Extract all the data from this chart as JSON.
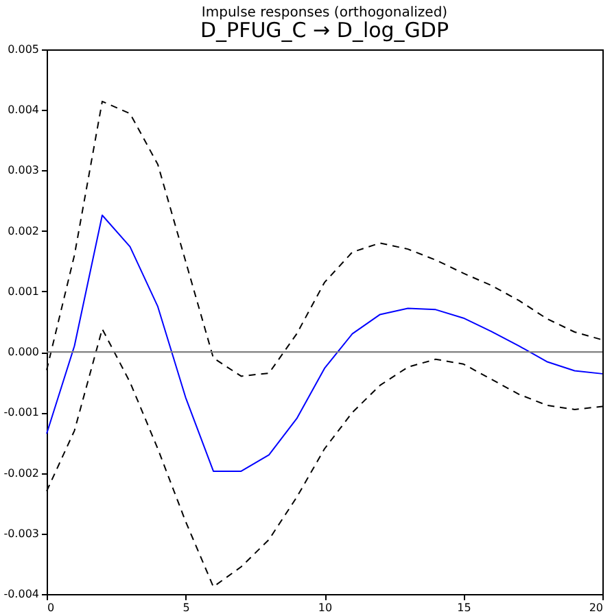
{
  "chart_data": {
    "type": "line",
    "title": "Impulse responses (orthogonalized)",
    "subtitle": "D_PFUG_C → D_log_GDP",
    "x": [
      0,
      1,
      2,
      3,
      4,
      5,
      6,
      7,
      8,
      9,
      10,
      11,
      12,
      13,
      14,
      15,
      16,
      17,
      18,
      19,
      20
    ],
    "series": [
      {
        "color": "#0000ff",
        "line_style": "solid",
        "values": [
          -0.00135,
          0.0001,
          0.00226,
          0.00174,
          0.00075,
          -0.00075,
          -0.00197,
          -0.00197,
          -0.0017,
          -0.0011,
          -0.00027,
          0.0003,
          0.00062,
          0.00072,
          0.0007,
          0.00056,
          0.00034,
          0.0001,
          -0.00016,
          -0.00031,
          -0.00036
        ]
      },
      {
        "color": "#000000",
        "line_style": "dashed",
        "values": [
          -0.0003,
          0.0016,
          0.00414,
          0.00394,
          0.0031,
          0.0015,
          -0.0001,
          -0.0004,
          -0.00035,
          0.0003,
          0.00115,
          0.00165,
          0.0018,
          0.0017,
          0.00152,
          0.0013,
          0.0011,
          0.00085,
          0.00055,
          0.00033,
          0.0002
        ]
      },
      {
        "color": "#000000",
        "line_style": "dashed",
        "values": [
          -0.0023,
          -0.0013,
          0.00038,
          -0.0005,
          -0.0016,
          -0.0028,
          -0.00388,
          -0.00355,
          -0.0031,
          -0.0024,
          -0.0016,
          -0.001,
          -0.00055,
          -0.00025,
          -0.00012,
          -0.0002,
          -0.00045,
          -0.0007,
          -0.00088,
          -0.00095,
          -0.0009
        ]
      }
    ],
    "xlim": [
      0,
      20
    ],
    "xticks": [
      0,
      5,
      10,
      15,
      20
    ],
    "ylim": [
      -0.004,
      0.005
    ],
    "yticks": [
      {
        "value": -0.004,
        "label": "-0.004"
      },
      {
        "value": -0.003,
        "label": "-0.003"
      },
      {
        "value": -0.002,
        "label": "-0.002"
      },
      {
        "value": -0.001,
        "label": "-0.001"
      },
      {
        "value": 0,
        "label": "0.000"
      },
      {
        "value": 0.001,
        "label": "0.001"
      },
      {
        "value": 0.002,
        "label": "0.002"
      },
      {
        "value": 0.003,
        "label": "0.003"
      },
      {
        "value": 0.004,
        "label": "0.004"
      },
      {
        "value": 0.005,
        "label": "0.005"
      }
    ],
    "ref_lines": [
      {
        "axis": "y",
        "value": 0,
        "color": "#808080"
      }
    ],
    "grid": false,
    "marker": "none"
  }
}
